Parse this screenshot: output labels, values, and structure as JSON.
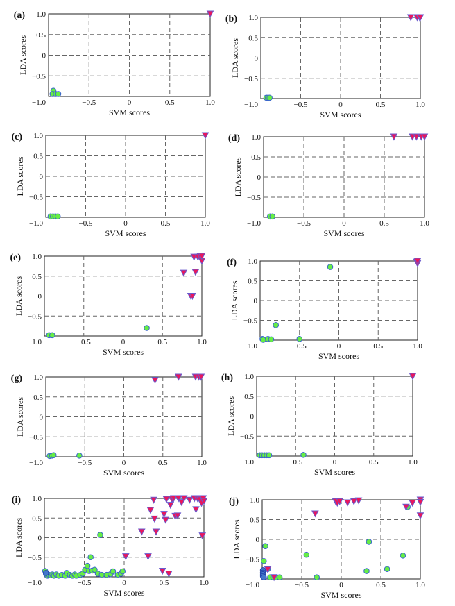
{
  "colors": {
    "circle_fill": "#66ee44",
    "circle_stroke": "#3a66cc",
    "triangle_fill": "#e8175d",
    "triangle_stroke": "#6a5acd",
    "grid": "#666666"
  },
  "chart_data": [
    {
      "type": "scatter",
      "panel_label": "(a)",
      "xlabel": "SVM scores",
      "ylabel": "LDA scores",
      "xlim": [
        -1,
        1
      ],
      "ylim": [
        -1,
        1
      ],
      "xticks": [
        -1.0,
        -0.5,
        0,
        0.5,
        1.0
      ],
      "yticks": [
        1.0,
        0.5,
        0,
        -0.5
      ],
      "xtick_labels": [
        "−1.0",
        "−0.5",
        "0",
        "0.5",
        "1.0"
      ],
      "ytick_labels": [
        "1.0",
        "0.5",
        "0",
        "−0.5"
      ],
      "corner_label": "−1.0",
      "series": [
        {
          "marker": "circle",
          "points": [
            [
              -0.94,
              -0.86
            ],
            [
              -0.95,
              -0.94
            ],
            [
              -0.91,
              -0.94
            ],
            [
              -0.88,
              -0.94
            ]
          ]
        },
        {
          "marker": "triangle",
          "points": [
            [
              1.0,
              1.0
            ]
          ]
        }
      ]
    },
    {
      "type": "scatter",
      "panel_label": "(b)",
      "xlabel": "SVM scores",
      "ylabel": "LDA scores",
      "xlim": [
        -1,
        1
      ],
      "ylim": [
        -1,
        1
      ],
      "xticks": [
        -1.0,
        -0.5,
        0,
        0.5,
        1.0
      ],
      "yticks": [
        1.0,
        0.5,
        0,
        -0.5
      ],
      "xtick_labels": [
        "−1.0",
        "−0.5",
        "0",
        "0.5",
        "1.0"
      ],
      "ytick_labels": [
        "1.0",
        "0.5",
        "0",
        "−0.5"
      ],
      "corner_label": "−1.0",
      "series": [
        {
          "marker": "circle",
          "points": [
            [
              -0.93,
              -0.98
            ],
            [
              -0.91,
              -0.98
            ],
            [
              -0.89,
              -0.98
            ]
          ]
        },
        {
          "marker": "triangle",
          "points": [
            [
              0.88,
              1.0
            ],
            [
              0.96,
              1.0
            ],
            [
              0.99,
              1.0
            ],
            [
              1.0,
              1.0
            ]
          ]
        }
      ]
    },
    {
      "type": "scatter",
      "panel_label": "(c)",
      "xlabel": "SVM scores",
      "ylabel": "LDA scores",
      "xlim": [
        -1,
        1
      ],
      "ylim": [
        -1,
        1
      ],
      "xticks": [
        -1.0,
        -0.5,
        0,
        0.5,
        1.0
      ],
      "yticks": [
        1.0,
        0.5,
        0,
        -0.5
      ],
      "xtick_labels": [
        "−1.0",
        "−0.5",
        "0",
        "0.5",
        "1.0"
      ],
      "ytick_labels": [
        "1.0",
        "0.5",
        "0",
        "−0.5"
      ],
      "corner_label": "−1.0",
      "series": [
        {
          "marker": "circle",
          "points": [
            [
              -0.94,
              -0.98
            ],
            [
              -0.91,
              -0.98
            ],
            [
              -0.88,
              -0.98
            ],
            [
              -0.85,
              -0.98
            ]
          ]
        },
        {
          "marker": "triangle",
          "points": [
            [
              1.0,
              1.0
            ]
          ]
        }
      ]
    },
    {
      "type": "scatter",
      "panel_label": "(d)",
      "xlabel": "SVM scores",
      "ylabel": "LDA scores",
      "xlim": [
        -1,
        1
      ],
      "ylim": [
        -1,
        1
      ],
      "xticks": [
        -1.0,
        -0.5,
        0,
        0.5,
        1.0
      ],
      "yticks": [
        1.0,
        0.5,
        0,
        -0.5
      ],
      "xtick_labels": [
        "−1.0",
        "−0.5",
        "0",
        "0.5",
        "1.0"
      ],
      "ytick_labels": [
        "1.0",
        "0.5",
        "0",
        "−0.5"
      ],
      "corner_label": "−1.0",
      "series": [
        {
          "marker": "circle",
          "points": [
            [
              -0.92,
              -0.98
            ],
            [
              -0.89,
              -0.98
            ]
          ]
        },
        {
          "marker": "triangle",
          "points": [
            [
              0.62,
              1.0
            ],
            [
              0.85,
              1.0
            ],
            [
              0.9,
              1.0
            ],
            [
              0.96,
              1.0
            ],
            [
              1.0,
              1.0
            ]
          ]
        }
      ]
    },
    {
      "type": "scatter",
      "panel_label": "(e)",
      "xlabel": "SVM scores",
      "ylabel": "LDA scores",
      "xlim": [
        -1,
        1
      ],
      "ylim": [
        -1,
        1
      ],
      "xticks": [
        -1.0,
        -0.5,
        0,
        0.5,
        1.0
      ],
      "yticks": [
        1.0,
        0.5,
        0,
        -0.5
      ],
      "xtick_labels": [
        "−1.0",
        "−0.5",
        "0",
        "0.5",
        "1.0"
      ],
      "ytick_labels": [
        "1.0",
        "0.5",
        "0",
        "−0.5"
      ],
      "corner_label": "−1.0",
      "series": [
        {
          "marker": "circle",
          "points": [
            [
              -0.94,
              -0.98
            ],
            [
              -0.9,
              -0.98
            ],
            [
              0.3,
              -0.8
            ]
          ]
        },
        {
          "marker": "triangle",
          "points": [
            [
              0.77,
              0.58
            ],
            [
              0.86,
              0.0
            ],
            [
              0.88,
              0.0
            ],
            [
              0.9,
              0.98
            ],
            [
              0.92,
              0.6
            ],
            [
              0.95,
              0.98
            ],
            [
              0.98,
              1.0
            ],
            [
              1.0,
              0.88
            ],
            [
              1.0,
              1.0
            ]
          ]
        }
      ]
    },
    {
      "type": "scatter",
      "panel_label": "(f)",
      "xlabel": "SVM scores",
      "ylabel": "LDA scores",
      "xlim": [
        -1,
        1
      ],
      "ylim": [
        -1,
        1
      ],
      "xticks": [
        -1.0,
        -0.5,
        0,
        0.5,
        1.0
      ],
      "yticks": [
        1.0,
        0.5,
        0,
        -0.5
      ],
      "xtick_labels": [
        "−1.0",
        "−0.5",
        "0",
        "0.5",
        "1.0"
      ],
      "ytick_labels": [
        "1.0",
        "0.5",
        "0",
        "−0.5"
      ],
      "corner_label": "−1.0",
      "series": [
        {
          "marker": "circle",
          "points": [
            [
              -0.97,
              -0.97
            ],
            [
              -0.96,
              -0.99
            ],
            [
              -0.9,
              -0.97
            ],
            [
              -0.86,
              -0.98
            ],
            [
              -0.8,
              -0.62
            ],
            [
              -0.5,
              -0.97
            ],
            [
              -0.11,
              0.85
            ]
          ]
        },
        {
          "marker": "triangle",
          "points": [
            [
              0.99,
              0.98
            ],
            [
              1.0,
              0.94
            ],
            [
              1.0,
              1.0
            ]
          ]
        }
      ]
    },
    {
      "type": "scatter",
      "panel_label": "(g)",
      "xlabel": "SVM scores",
      "ylabel": "LDA scores",
      "xlim": [
        -1,
        1
      ],
      "ylim": [
        -1,
        1
      ],
      "xticks": [
        -1.0,
        -0.5,
        0,
        0.5,
        1.0
      ],
      "yticks": [
        1.0,
        0.5,
        0,
        -0.5
      ],
      "xtick_labels": [
        "−1.0",
        "−0.5",
        "0",
        "0.5",
        "1.0"
      ],
      "ytick_labels": [
        "1.0",
        "0.5",
        "0",
        "−0.5"
      ],
      "corner_label": "−1.0",
      "series": [
        {
          "marker": "circle",
          "points": [
            [
              -0.95,
              -0.98
            ],
            [
              -0.92,
              -0.97
            ],
            [
              -0.9,
              -0.96
            ],
            [
              -0.57,
              -0.97
            ]
          ]
        },
        {
          "marker": "triangle",
          "points": [
            [
              0.4,
              0.92
            ],
            [
              0.7,
              1.0
            ],
            [
              0.92,
              1.0
            ],
            [
              0.96,
              1.0
            ],
            [
              0.99,
              1.0
            ]
          ]
        }
      ]
    },
    {
      "type": "scatter",
      "panel_label": "(h)",
      "xlabel": "SVM scores",
      "ylabel": "LDA scores",
      "xlim": [
        -1,
        1
      ],
      "ylim": [
        -1,
        1
      ],
      "xticks": [
        -1.0,
        -0.5,
        0,
        0.5,
        1.0
      ],
      "yticks": [
        1.0,
        0.5,
        0,
        -0.5
      ],
      "xtick_labels": [
        "−1.0",
        "−0.5",
        "0",
        "0.5",
        "1.0"
      ],
      "ytick_labels": [
        "1.0",
        "0.5",
        "0",
        "−0.5"
      ],
      "corner_label": "−1.0",
      "series": [
        {
          "marker": "circle",
          "points": [
            [
              -0.96,
              -0.98
            ],
            [
              -0.93,
              -0.98
            ],
            [
              -0.9,
              -0.98
            ],
            [
              -0.87,
              -0.98
            ],
            [
              -0.84,
              -0.98
            ],
            [
              -0.4,
              -0.97
            ]
          ]
        },
        {
          "marker": "triangle",
          "points": [
            [
              1.0,
              1.0
            ]
          ]
        }
      ]
    },
    {
      "type": "scatter",
      "panel_label": "(i)",
      "xlabel": "SVM scores",
      "ylabel": "LDA scores",
      "xlim": [
        -1,
        1
      ],
      "ylim": [
        -1,
        1
      ],
      "xticks": [
        -1.0,
        -0.5,
        0,
        0.5,
        1.0
      ],
      "yticks": [
        1.0,
        0.5,
        0,
        -0.5
      ],
      "xtick_labels": [
        "−1.0",
        "−0.5",
        "0",
        "0.5",
        "1.0"
      ],
      "ytick_labels": [
        "1.0",
        "0.5",
        "0",
        "−0.5"
      ],
      "corner_label": "−1.0",
      "series": [
        {
          "marker": "circle",
          "points": [
            [
              -0.99,
              -0.85
            ],
            [
              -0.98,
              -0.93
            ],
            [
              -0.96,
              -0.97
            ],
            [
              -0.94,
              -0.95
            ],
            [
              -0.92,
              -0.96
            ],
            [
              -0.9,
              -0.94
            ],
            [
              -0.88,
              -0.97
            ],
            [
              -0.85,
              -0.94
            ],
            [
              -0.82,
              -0.97
            ],
            [
              -0.78,
              -0.95
            ],
            [
              -0.74,
              -0.97
            ],
            [
              -0.72,
              -0.9
            ],
            [
              -0.68,
              -0.95
            ],
            [
              -0.65,
              -0.97
            ],
            [
              -0.62,
              -0.94
            ],
            [
              -0.6,
              -0.97
            ],
            [
              -0.55,
              -0.95
            ],
            [
              -0.52,
              -0.92
            ],
            [
              -0.49,
              -0.82
            ],
            [
              -0.46,
              -0.72
            ],
            [
              -0.44,
              -0.85
            ],
            [
              -0.42,
              -0.5
            ],
            [
              -0.4,
              -0.84
            ],
            [
              -0.37,
              -0.82
            ],
            [
              -0.33,
              -0.92
            ],
            [
              -0.3,
              0.07
            ],
            [
              -0.28,
              -0.95
            ],
            [
              -0.22,
              -0.95
            ],
            [
              -0.17,
              -0.93
            ],
            [
              -0.14,
              -0.86
            ],
            [
              -0.08,
              -0.95
            ],
            [
              -0.04,
              -0.92
            ],
            [
              -0.02,
              -0.86
            ]
          ]
        },
        {
          "marker": "circle_dark",
          "points": [
            [
              -0.98,
              -0.9
            ]
          ]
        },
        {
          "marker": "triangle",
          "points": [
            [
              0.02,
              -0.48
            ],
            [
              0.22,
              0.15
            ],
            [
              0.3,
              -0.48
            ],
            [
              0.33,
              0.7
            ],
            [
              0.37,
              0.96
            ],
            [
              0.38,
              0.48
            ],
            [
              0.4,
              0.15
            ],
            [
              0.48,
              -0.85
            ],
            [
              0.5,
              0.6
            ],
            [
              0.52,
              0.45
            ],
            [
              0.53,
              0.98
            ],
            [
              0.56,
              -0.92
            ],
            [
              0.58,
              0.83
            ],
            [
              0.6,
              0.98
            ],
            [
              0.62,
              1.0
            ],
            [
              0.64,
              0.55
            ],
            [
              0.67,
              0.56
            ],
            [
              0.68,
              1.0
            ],
            [
              0.72,
              0.9
            ],
            [
              0.75,
              1.0
            ],
            [
              0.82,
              0.96
            ],
            [
              0.88,
              1.0
            ],
            [
              0.9,
              0.72
            ],
            [
              0.92,
              1.0
            ],
            [
              0.95,
              0.97
            ],
            [
              0.97,
              0.88
            ],
            [
              0.98,
              0.05
            ],
            [
              0.99,
              1.0
            ],
            [
              1.0,
              0.93
            ]
          ]
        }
      ]
    },
    {
      "type": "scatter",
      "panel_label": "(j)",
      "xlabel": "SVM scores",
      "ylabel": "LDA scores",
      "xlim": [
        -1,
        1
      ],
      "ylim": [
        -1,
        1
      ],
      "xticks": [
        -1.0,
        -0.5,
        0,
        0.5,
        1.0
      ],
      "yticks": [
        1.0,
        0.5,
        0,
        -0.5
      ],
      "xtick_labels": [
        "−1.0",
        "−0.5",
        "0",
        "0.5",
        "1.0"
      ],
      "ytick_labels": [
        "1.0",
        "0.5",
        "0",
        "−0.5"
      ],
      "corner_label": "−1.0",
      "series": [
        {
          "marker": "circle",
          "points": [
            [
              -0.98,
              -0.55
            ],
            [
              -0.96,
              -0.17
            ],
            [
              -0.93,
              -0.75
            ],
            [
              -0.9,
              -0.96
            ],
            [
              -0.86,
              -0.96
            ],
            [
              -0.82,
              -0.96
            ],
            [
              -0.78,
              -0.96
            ],
            [
              -0.44,
              -0.39
            ],
            [
              -0.31,
              -0.96
            ],
            [
              0.32,
              -0.8
            ],
            [
              0.35,
              -0.06
            ],
            [
              0.58,
              -0.75
            ],
            [
              0.78,
              -0.41
            ],
            [
              0.84,
              0.82
            ]
          ]
        },
        {
          "marker": "circle_dark",
          "points": [
            [
              -0.99,
              -0.78
            ],
            [
              -0.99,
              -0.84
            ],
            [
              -0.99,
              -0.88
            ],
            [
              -0.99,
              -0.93
            ],
            [
              -0.98,
              -0.96
            ]
          ]
        },
        {
          "marker": "triangle",
          "points": [
            [
              -0.93,
              -0.76
            ],
            [
              -0.85,
              -0.96
            ],
            [
              -0.33,
              0.65
            ],
            [
              -0.07,
              0.96
            ],
            [
              -0.05,
              0.92
            ],
            [
              -0.02,
              0.96
            ],
            [
              0.08,
              0.93
            ],
            [
              0.16,
              0.96
            ],
            [
              0.22,
              0.98
            ],
            [
              0.82,
              0.82
            ],
            [
              0.9,
              0.92
            ],
            [
              1.0,
              1.0
            ],
            [
              1.0,
              0.94
            ],
            [
              1.0,
              0.6
            ]
          ]
        }
      ]
    }
  ]
}
